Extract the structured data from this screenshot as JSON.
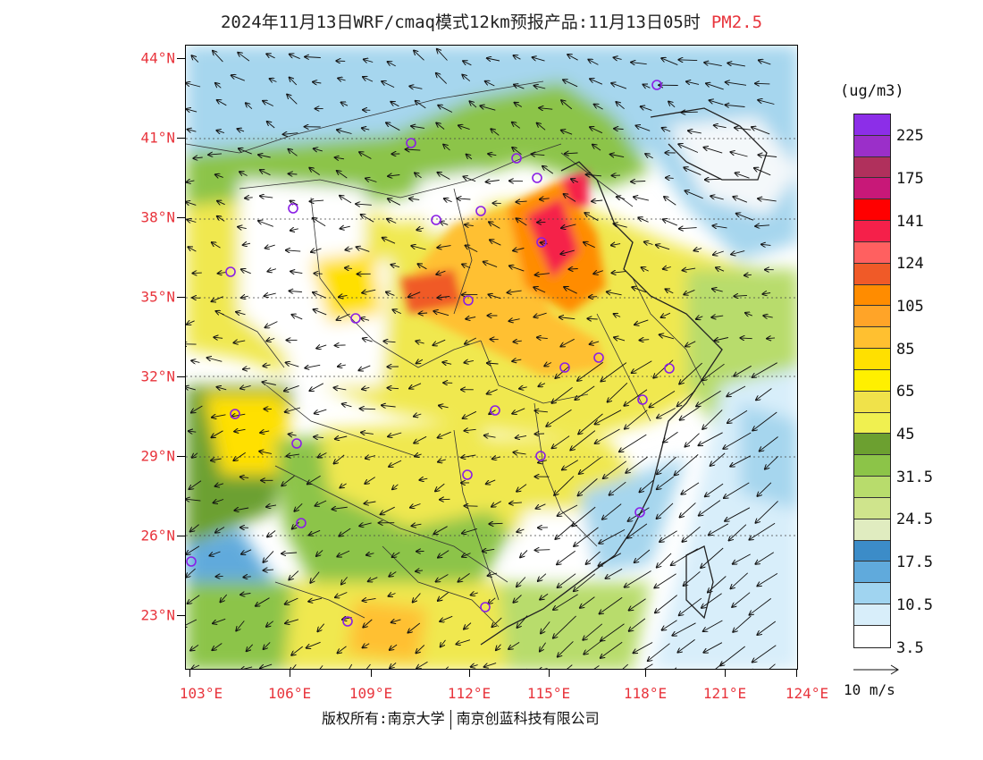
{
  "title": {
    "main": "2024年11月13日WRF/cmaq模式12km预报产品:11月13日05时",
    "pollutant": "PM2.5"
  },
  "map": {
    "lat_labels": [
      "44°N",
      "41°N",
      "38°N",
      "35°N",
      "32°N",
      "29°N",
      "26°N",
      "23°N"
    ],
    "lon_labels": [
      "103°E",
      "106°E",
      "109°E",
      "112°E",
      "115°E",
      "118°E",
      "121°E",
      "124°E"
    ]
  },
  "colorbar": {
    "unit": "(ug/m3)",
    "colors": [
      "#8c2ee8",
      "#9b2fc9",
      "#b0305c",
      "#c81878",
      "#ff0000",
      "#f5204a",
      "#ff6060",
      "#f05a28",
      "#ff8c00",
      "#ffa428",
      "#ffc030",
      "#ffe000",
      "#fff000",
      "#f0e24a",
      "#f0f050",
      "#6ca030",
      "#8cc448",
      "#b8dc6c",
      "#cfe48c",
      "#e0ecc0",
      "#3c8cc8",
      "#60aadc",
      "#a0d4f0",
      "#d8eefa",
      "#ffffff"
    ],
    "labels": [
      "225",
      "175",
      "141",
      "124",
      "105",
      "85",
      "65",
      "45",
      "31.5",
      "24.5",
      "17.5",
      "10.5",
      "3.5"
    ]
  },
  "wind_scale": {
    "label": "10 m/s"
  },
  "copyright": {
    "left": "版权所有:南京大学",
    "right": "南京创蓝科技有限公司"
  }
}
